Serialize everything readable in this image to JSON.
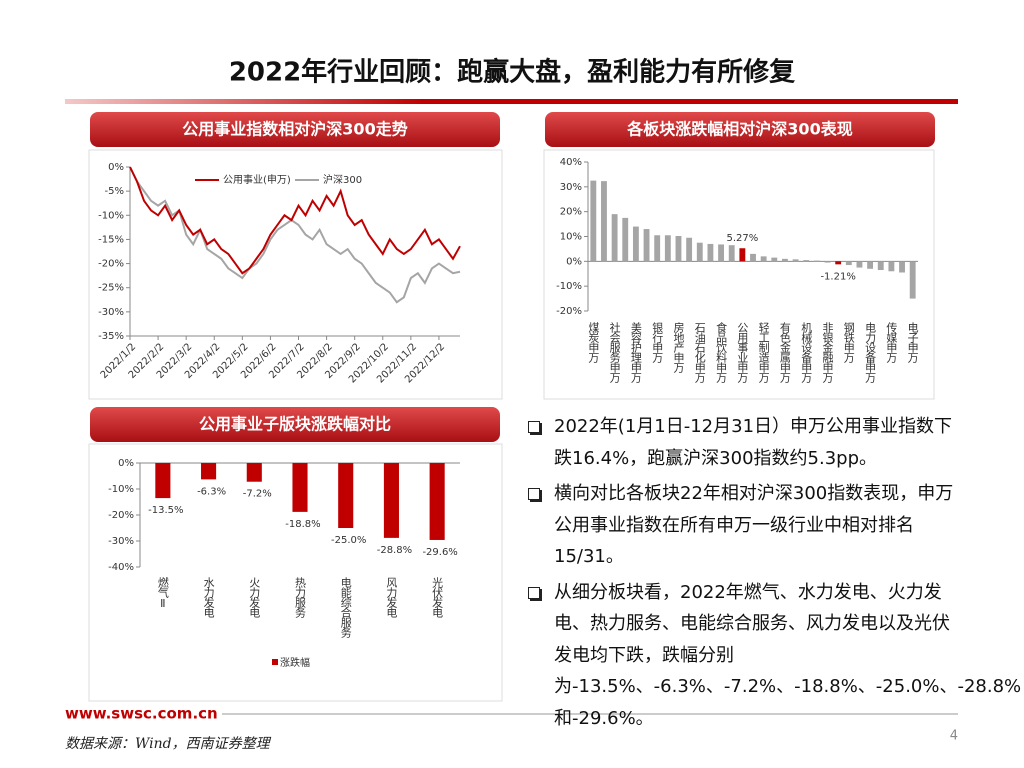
{
  "title": "2022年行业回顾：跑赢大盘，盈利能力有所修复",
  "panels": [
    "公用事业指数相对沪深300走势",
    "各板块涨跌幅相对沪深300表现",
    "公用事业子版块涨跌幅对比"
  ],
  "chart_data": [
    {
      "type": "line",
      "categories": [
        "2022/1/2",
        null,
        null,
        null,
        "2022/2/2",
        null,
        null,
        null,
        "2022/3/2",
        null,
        null,
        null,
        "2022/4/2",
        null,
        null,
        null,
        "2022/5/2",
        null,
        null,
        null,
        "2022/6/2",
        null,
        null,
        null,
        "2022/7/2",
        null,
        null,
        null,
        "2022/8/2",
        null,
        null,
        null,
        "2022/9/2",
        null,
        null,
        null,
        "2022/10/2",
        null,
        null,
        null,
        "2022/11/2",
        null,
        null,
        null,
        "2022/12/2",
        null,
        null,
        null
      ],
      "series": [
        {
          "name": "公用事业(申万)",
          "color": "#c00000",
          "values": [
            0,
            -3,
            -7,
            -9,
            -10,
            -8,
            -11,
            -9,
            -12,
            -14,
            -13,
            -16,
            -15,
            -17,
            -18,
            -20,
            -22,
            -21,
            -19,
            -17,
            -14,
            -12,
            -10,
            -11,
            -8,
            -10,
            -7,
            -9,
            -6,
            -8,
            -5,
            -10,
            -12,
            -11,
            -14,
            -16,
            -18,
            -15,
            -17,
            -18,
            -17,
            -15,
            -13,
            -16,
            -15,
            -17,
            -19,
            -16.4
          ]
        },
        {
          "name": "沪深300",
          "color": "#a5a5a5",
          "values": [
            0,
            -3,
            -5,
            -7,
            -8,
            -7,
            -10,
            -9,
            -14,
            -16,
            -13,
            -17,
            -18,
            -19,
            -21,
            -22,
            -23,
            -21,
            -20,
            -18,
            -15,
            -13,
            -12,
            -11,
            -12,
            -14,
            -15,
            -13,
            -16,
            -17,
            -18,
            -17,
            -19,
            -20,
            -22,
            -24,
            -25,
            -26,
            -28,
            -27,
            -23,
            -22,
            -24,
            -21,
            -20,
            -21,
            -22,
            -21.7
          ]
        }
      ],
      "ylim": [
        -35,
        0
      ],
      "yticks": [
        {
          "value": 0,
          "label": "0%"
        },
        {
          "value": -5,
          "label": "-5%"
        },
        {
          "value": -10,
          "label": "-10%"
        },
        {
          "value": -15,
          "label": "-15%"
        },
        {
          "value": -20,
          "label": "-20%"
        },
        {
          "value": -25,
          "label": "-25%"
        },
        {
          "value": -30,
          "label": "-30%"
        },
        {
          "value": -35,
          "label": "-35%"
        }
      ],
      "legend": "top"
    },
    {
      "type": "bar",
      "categories": [
        "煤炭申万",
        null,
        "社会服务申万",
        null,
        "美容护理申万",
        null,
        "银行申万",
        null,
        "房地产申万",
        null,
        "石油石化申万",
        null,
        "食品饮料申万",
        null,
        "公用事业申万",
        null,
        "轻工制造申万",
        null,
        "有色金属申万",
        null,
        "机械设备申万",
        null,
        "非银金融申万",
        null,
        "钢铁申万",
        null,
        "电力设备申万",
        null,
        "传媒申万",
        null,
        "电子申万"
      ],
      "values": [
        32.5,
        32.3,
        19,
        17.5,
        14,
        13,
        10.5,
        10.5,
        10.2,
        9.5,
        7.5,
        7,
        6.8,
        6.5,
        5.27,
        3,
        2,
        1.5,
        1,
        0.8,
        0.5,
        0.3,
        -0.5,
        -1.21,
        -1.5,
        -2.5,
        -3,
        -3.5,
        -4,
        -4.5,
        -15
      ],
      "value_labels": [
        null,
        null,
        null,
        null,
        null,
        null,
        null,
        null,
        null,
        null,
        null,
        null,
        null,
        null,
        "5.27%",
        null,
        null,
        null,
        null,
        null,
        null,
        null,
        null,
        "-1.21%",
        null,
        null,
        null,
        null,
        null,
        null,
        null
      ],
      "colors": [
        "#a5a5a5",
        "#a5a5a5",
        "#a5a5a5",
        "#a5a5a5",
        "#a5a5a5",
        "#a5a5a5",
        "#a5a5a5",
        "#a5a5a5",
        "#a5a5a5",
        "#a5a5a5",
        "#a5a5a5",
        "#a5a5a5",
        "#a5a5a5",
        "#a5a5a5",
        "#c00000",
        "#a5a5a5",
        "#a5a5a5",
        "#a5a5a5",
        "#a5a5a5",
        "#a5a5a5",
        "#a5a5a5",
        "#a5a5a5",
        "#a5a5a5",
        "#c00000",
        "#a5a5a5",
        "#a5a5a5",
        "#a5a5a5",
        "#a5a5a5",
        "#a5a5a5",
        "#a5a5a5",
        "#a5a5a5"
      ],
      "ylim": [
        -20,
        40
      ],
      "yticks": [
        {
          "value": 40,
          "label": "40%"
        },
        {
          "value": 30,
          "label": "30%"
        },
        {
          "value": 20,
          "label": "20%"
        },
        {
          "value": 10,
          "label": "10%"
        },
        {
          "value": 0,
          "label": "0%"
        },
        {
          "value": -10,
          "label": "-10%"
        },
        {
          "value": -20,
          "label": "-20%"
        }
      ]
    },
    {
      "type": "bar",
      "categories": [
        "燃气Ⅱ",
        "水力发电",
        "火力发电",
        "热力服务",
        "电能综合服务",
        "风力发电",
        "光伏发电"
      ],
      "series": [
        {
          "name": "涨跌幅",
          "color": "#c00000",
          "values": [
            -13.5,
            -6.3,
            -7.2,
            -18.8,
            -25.0,
            -28.8,
            -29.6
          ]
        }
      ],
      "value_labels": [
        "-13.5%",
        "-6.3%",
        "-7.2%",
        "-18.8%",
        "-25.0%",
        "-28.8%",
        "-29.6%"
      ],
      "ylim": [
        -40,
        0
      ],
      "yticks": [
        {
          "value": 0,
          "label": "0%"
        },
        {
          "value": -10,
          "label": "-10%"
        },
        {
          "value": -20,
          "label": "-20%"
        },
        {
          "value": -30,
          "label": "-30%"
        },
        {
          "value": -40,
          "label": "-40%"
        }
      ],
      "legend": "bottom"
    }
  ],
  "bullets": [
    "2022年(1月1日-12月31日）申万公用事业指数下跌16.4%，跑赢沪深300指数约5.3pp。",
    "横向对比各板块22年相对沪深300指数表现，申万公用事业指数在所有申万一级行业中相对排名15/31。",
    "从细分板块看，2022年燃气、水力发电、火力发电、热力服务、电能综合服务、风力发电以及光伏发电均下跌，跌幅分别为-13.5%、-6.3%、-7.2%、-18.8%、-25.0%、-28.8%和-29.6%。"
  ],
  "footer": {
    "site": "www.swsc.com.cn",
    "source": "数据来源：Wind，西南证券整理",
    "page": "4"
  }
}
